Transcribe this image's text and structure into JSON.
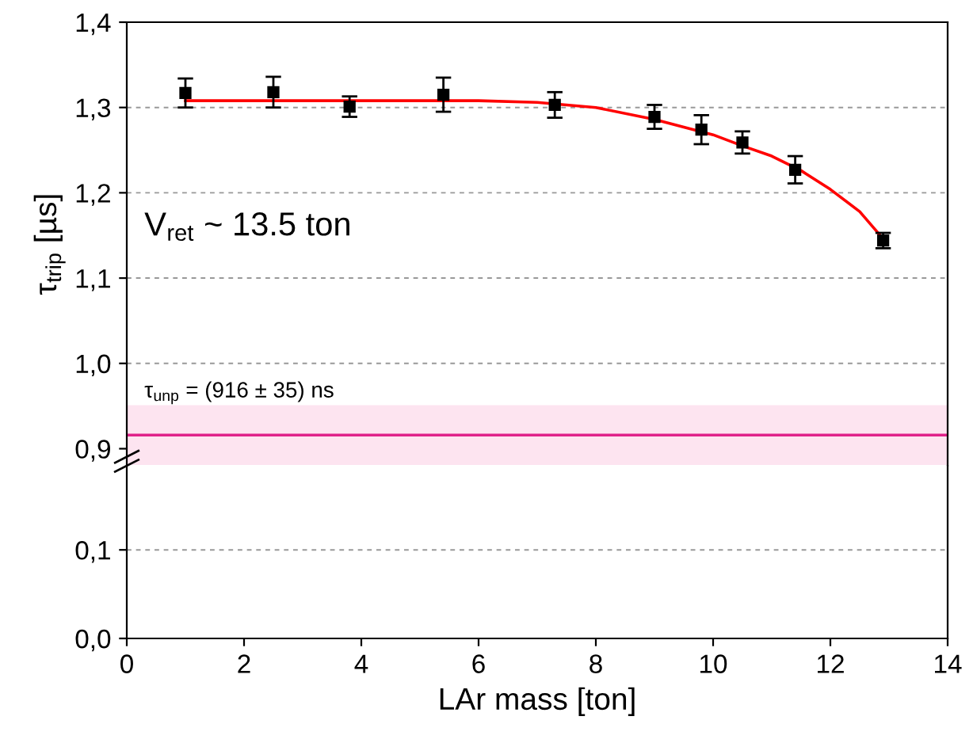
{
  "chart_data": [
    {
      "type": "scatter",
      "ylabel": "τ$_{trip}$ [µs]",
      "xlim": [
        0,
        14
      ],
      "ylim": [
        0.88,
        1.4
      ],
      "yticks": [
        {
          "value": 0.9,
          "label": "0,9"
        },
        {
          "value": 1.0,
          "label": "1,0"
        },
        {
          "value": 1.1,
          "label": "1,1"
        },
        {
          "value": 1.2,
          "label": "1,2"
        },
        {
          "value": 1.3,
          "label": "1,3"
        },
        {
          "value": 1.4,
          "label": "1,4"
        }
      ],
      "tick_labels": "y",
      "grid": "y",
      "series": [
        {
          "marker": "square",
          "color": "#000000",
          "x": [
            1.0,
            2.5,
            3.8,
            5.4,
            7.3,
            9.0,
            9.8,
            10.5,
            11.4,
            12.9
          ],
          "values": [
            1.317,
            1.318,
            1.301,
            1.315,
            1.303,
            1.289,
            1.274,
            1.259,
            1.227,
            1.144
          ],
          "errors": [
            0.017,
            0.018,
            0.012,
            0.02,
            0.015,
            0.014,
            0.017,
            0.013,
            0.016,
            0.009
          ]
        },
        {
          "type": "line",
          "color": "#ff0000",
          "x": [
            1,
            6,
            7,
            8,
            9,
            10,
            10.5,
            11,
            11.5,
            12,
            12.5,
            12.9
          ],
          "values": [
            1.308,
            1.308,
            1.306,
            1.3,
            1.286,
            1.268,
            1.255,
            1.243,
            1.226,
            1.204,
            1.178,
            1.146
          ]
        }
      ],
      "ref_lines": [
        {
          "axis": "y",
          "value": 0.916,
          "color": "#e0218a"
        }
      ],
      "bands": [
        {
          "axis": "y",
          "from": 0.881,
          "to": 0.951,
          "color": "#fde4f0"
        }
      ],
      "annotations": [
        "V$_{ret}$ ~ 13.5 ton",
        "τ$_{unp}$ = (916 ± 35) ns"
      ]
    },
    {
      "type": "scatter",
      "xlabel": "LAr mass [ton]",
      "xlim": [
        0,
        14
      ],
      "ylim": [
        0,
        0.195
      ],
      "xticks": [
        0,
        2,
        4,
        6,
        8,
        10,
        12,
        14
      ],
      "yticks": [
        {
          "value": 0.0,
          "label": "0,0"
        },
        {
          "value": 0.1,
          "label": "0,1"
        }
      ],
      "grid": "y"
    }
  ]
}
